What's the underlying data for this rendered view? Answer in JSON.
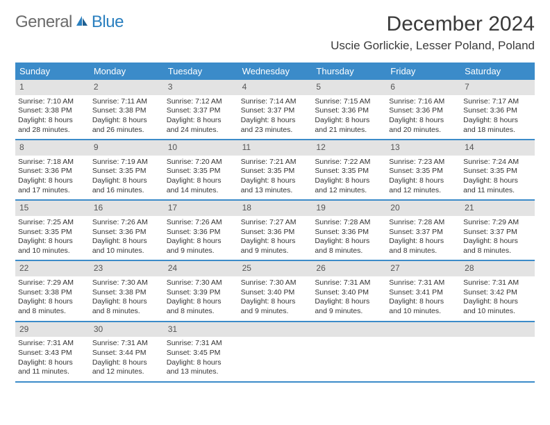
{
  "logo": {
    "part1": "General",
    "part2": "Blue"
  },
  "title": "December 2024",
  "location": "Uscie Gorlickie, Lesser Poland, Poland",
  "colors": {
    "header_bg": "#3b8bc9",
    "header_text": "#ffffff",
    "num_bg": "#e3e3e3",
    "border": "#3b8bc9",
    "logo_gray": "#6b6b6b",
    "logo_blue": "#2a7fbf"
  },
  "days": [
    "Sunday",
    "Monday",
    "Tuesday",
    "Wednesday",
    "Thursday",
    "Friday",
    "Saturday"
  ],
  "weeks": [
    [
      {
        "n": "1",
        "sr": "Sunrise: 7:10 AM",
        "ss": "Sunset: 3:38 PM",
        "d1": "Daylight: 8 hours",
        "d2": "and 28 minutes."
      },
      {
        "n": "2",
        "sr": "Sunrise: 7:11 AM",
        "ss": "Sunset: 3:38 PM",
        "d1": "Daylight: 8 hours",
        "d2": "and 26 minutes."
      },
      {
        "n": "3",
        "sr": "Sunrise: 7:12 AM",
        "ss": "Sunset: 3:37 PM",
        "d1": "Daylight: 8 hours",
        "d2": "and 24 minutes."
      },
      {
        "n": "4",
        "sr": "Sunrise: 7:14 AM",
        "ss": "Sunset: 3:37 PM",
        "d1": "Daylight: 8 hours",
        "d2": "and 23 minutes."
      },
      {
        "n": "5",
        "sr": "Sunrise: 7:15 AM",
        "ss": "Sunset: 3:36 PM",
        "d1": "Daylight: 8 hours",
        "d2": "and 21 minutes."
      },
      {
        "n": "6",
        "sr": "Sunrise: 7:16 AM",
        "ss": "Sunset: 3:36 PM",
        "d1": "Daylight: 8 hours",
        "d2": "and 20 minutes."
      },
      {
        "n": "7",
        "sr": "Sunrise: 7:17 AM",
        "ss": "Sunset: 3:36 PM",
        "d1": "Daylight: 8 hours",
        "d2": "and 18 minutes."
      }
    ],
    [
      {
        "n": "8",
        "sr": "Sunrise: 7:18 AM",
        "ss": "Sunset: 3:36 PM",
        "d1": "Daylight: 8 hours",
        "d2": "and 17 minutes."
      },
      {
        "n": "9",
        "sr": "Sunrise: 7:19 AM",
        "ss": "Sunset: 3:35 PM",
        "d1": "Daylight: 8 hours",
        "d2": "and 16 minutes."
      },
      {
        "n": "10",
        "sr": "Sunrise: 7:20 AM",
        "ss": "Sunset: 3:35 PM",
        "d1": "Daylight: 8 hours",
        "d2": "and 14 minutes."
      },
      {
        "n": "11",
        "sr": "Sunrise: 7:21 AM",
        "ss": "Sunset: 3:35 PM",
        "d1": "Daylight: 8 hours",
        "d2": "and 13 minutes."
      },
      {
        "n": "12",
        "sr": "Sunrise: 7:22 AM",
        "ss": "Sunset: 3:35 PM",
        "d1": "Daylight: 8 hours",
        "d2": "and 12 minutes."
      },
      {
        "n": "13",
        "sr": "Sunrise: 7:23 AM",
        "ss": "Sunset: 3:35 PM",
        "d1": "Daylight: 8 hours",
        "d2": "and 12 minutes."
      },
      {
        "n": "14",
        "sr": "Sunrise: 7:24 AM",
        "ss": "Sunset: 3:35 PM",
        "d1": "Daylight: 8 hours",
        "d2": "and 11 minutes."
      }
    ],
    [
      {
        "n": "15",
        "sr": "Sunrise: 7:25 AM",
        "ss": "Sunset: 3:35 PM",
        "d1": "Daylight: 8 hours",
        "d2": "and 10 minutes."
      },
      {
        "n": "16",
        "sr": "Sunrise: 7:26 AM",
        "ss": "Sunset: 3:36 PM",
        "d1": "Daylight: 8 hours",
        "d2": "and 10 minutes."
      },
      {
        "n": "17",
        "sr": "Sunrise: 7:26 AM",
        "ss": "Sunset: 3:36 PM",
        "d1": "Daylight: 8 hours",
        "d2": "and 9 minutes."
      },
      {
        "n": "18",
        "sr": "Sunrise: 7:27 AM",
        "ss": "Sunset: 3:36 PM",
        "d1": "Daylight: 8 hours",
        "d2": "and 9 minutes."
      },
      {
        "n": "19",
        "sr": "Sunrise: 7:28 AM",
        "ss": "Sunset: 3:36 PM",
        "d1": "Daylight: 8 hours",
        "d2": "and 8 minutes."
      },
      {
        "n": "20",
        "sr": "Sunrise: 7:28 AM",
        "ss": "Sunset: 3:37 PM",
        "d1": "Daylight: 8 hours",
        "d2": "and 8 minutes."
      },
      {
        "n": "21",
        "sr": "Sunrise: 7:29 AM",
        "ss": "Sunset: 3:37 PM",
        "d1": "Daylight: 8 hours",
        "d2": "and 8 minutes."
      }
    ],
    [
      {
        "n": "22",
        "sr": "Sunrise: 7:29 AM",
        "ss": "Sunset: 3:38 PM",
        "d1": "Daylight: 8 hours",
        "d2": "and 8 minutes."
      },
      {
        "n": "23",
        "sr": "Sunrise: 7:30 AM",
        "ss": "Sunset: 3:38 PM",
        "d1": "Daylight: 8 hours",
        "d2": "and 8 minutes."
      },
      {
        "n": "24",
        "sr": "Sunrise: 7:30 AM",
        "ss": "Sunset: 3:39 PM",
        "d1": "Daylight: 8 hours",
        "d2": "and 8 minutes."
      },
      {
        "n": "25",
        "sr": "Sunrise: 7:30 AM",
        "ss": "Sunset: 3:40 PM",
        "d1": "Daylight: 8 hours",
        "d2": "and 9 minutes."
      },
      {
        "n": "26",
        "sr": "Sunrise: 7:31 AM",
        "ss": "Sunset: 3:40 PM",
        "d1": "Daylight: 8 hours",
        "d2": "and 9 minutes."
      },
      {
        "n": "27",
        "sr": "Sunrise: 7:31 AM",
        "ss": "Sunset: 3:41 PM",
        "d1": "Daylight: 8 hours",
        "d2": "and 10 minutes."
      },
      {
        "n": "28",
        "sr": "Sunrise: 7:31 AM",
        "ss": "Sunset: 3:42 PM",
        "d1": "Daylight: 8 hours",
        "d2": "and 10 minutes."
      }
    ],
    [
      {
        "n": "29",
        "sr": "Sunrise: 7:31 AM",
        "ss": "Sunset: 3:43 PM",
        "d1": "Daylight: 8 hours",
        "d2": "and 11 minutes."
      },
      {
        "n": "30",
        "sr": "Sunrise: 7:31 AM",
        "ss": "Sunset: 3:44 PM",
        "d1": "Daylight: 8 hours",
        "d2": "and 12 minutes."
      },
      {
        "n": "31",
        "sr": "Sunrise: 7:31 AM",
        "ss": "Sunset: 3:45 PM",
        "d1": "Daylight: 8 hours",
        "d2": "and 13 minutes."
      },
      {
        "empty": true
      },
      {
        "empty": true
      },
      {
        "empty": true
      },
      {
        "empty": true
      }
    ]
  ]
}
